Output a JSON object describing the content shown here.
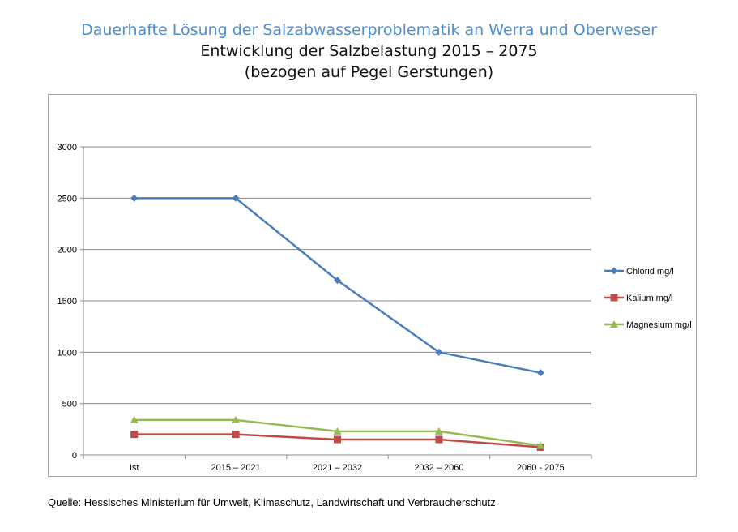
{
  "header": {
    "title": "Dauerhafte Lösung der Salzabwasserproblematik an Werra und Oberweser",
    "subtitle": "Entwicklung der Salzbelastung 2015 – 2075",
    "subtitle2": "(bezogen auf Pegel Gerstungen)"
  },
  "source": "Quelle: Hessisches Ministerium für Umwelt, Klimaschutz, Landwirtschaft und Verbraucherschutz",
  "chart_data": {
    "type": "line",
    "categories": [
      "Ist",
      "2015 – 2021",
      "2021 – 2032",
      "2032 – 2060",
      "2060 - 2075"
    ],
    "ylim": [
      0,
      3000
    ],
    "yticks": [
      0,
      500,
      1000,
      1500,
      2000,
      2500,
      3000
    ],
    "grid": true,
    "legend_position": "right",
    "series": [
      {
        "name": "Chlorid mg/l",
        "color": "#4a7ebb",
        "marker": "diamond",
        "values": [
          2500,
          2500,
          1700,
          1000,
          800
        ]
      },
      {
        "name": "Kalium mg/l",
        "color": "#be4b48",
        "marker": "square",
        "values": [
          200,
          200,
          150,
          150,
          75
        ]
      },
      {
        "name": "Magnesium mg/l",
        "color": "#98b954",
        "marker": "triangle",
        "values": [
          340,
          340,
          230,
          230,
          90
        ]
      }
    ]
  }
}
